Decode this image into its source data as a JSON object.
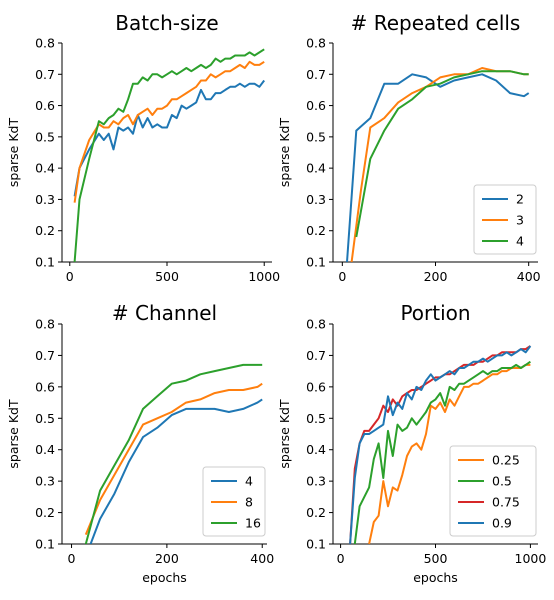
{
  "chart_data": [
    {
      "type": "line",
      "title": "Batch-size",
      "xlabel": "",
      "ylabel": "sparse KdT",
      "xlim": [
        -40,
        1040
      ],
      "ylim": [
        0.1,
        0.8
      ],
      "xticks": [
        0,
        500,
        1000
      ],
      "yticks": [
        0.1,
        0.2,
        0.3,
        0.4,
        0.5,
        0.6,
        0.7,
        0.8
      ],
      "legend": null,
      "series": [
        {
          "color": "#1f77b4",
          "x": [
            25,
            50,
            100,
            150,
            175,
            200,
            225,
            250,
            275,
            300,
            325,
            350,
            375,
            400,
            425,
            450,
            475,
            500,
            525,
            550,
            575,
            600,
            625,
            650,
            675,
            700,
            725,
            750,
            775,
            800,
            825,
            850,
            875,
            900,
            925,
            950,
            975,
            1000
          ],
          "y": [
            0.31,
            0.4,
            0.46,
            0.51,
            0.49,
            0.51,
            0.46,
            0.53,
            0.52,
            0.53,
            0.51,
            0.57,
            0.53,
            0.56,
            0.53,
            0.54,
            0.53,
            0.53,
            0.57,
            0.56,
            0.6,
            0.59,
            0.6,
            0.61,
            0.65,
            0.62,
            0.62,
            0.64,
            0.64,
            0.65,
            0.66,
            0.66,
            0.67,
            0.66,
            0.67,
            0.67,
            0.66,
            0.68
          ]
        },
        {
          "color": "#ff7f0e",
          "x": [
            25,
            50,
            100,
            150,
            175,
            200,
            225,
            250,
            275,
            300,
            325,
            350,
            375,
            400,
            425,
            450,
            475,
            500,
            525,
            550,
            575,
            600,
            625,
            650,
            675,
            700,
            725,
            750,
            775,
            800,
            825,
            850,
            875,
            900,
            925,
            950,
            975,
            1000
          ],
          "y": [
            0.29,
            0.4,
            0.49,
            0.54,
            0.53,
            0.53,
            0.55,
            0.54,
            0.56,
            0.57,
            0.54,
            0.57,
            0.58,
            0.59,
            0.57,
            0.59,
            0.59,
            0.6,
            0.62,
            0.62,
            0.63,
            0.64,
            0.65,
            0.66,
            0.68,
            0.68,
            0.7,
            0.69,
            0.7,
            0.71,
            0.71,
            0.72,
            0.73,
            0.72,
            0.74,
            0.73,
            0.73,
            0.74
          ]
        },
        {
          "color": "#2ca02c",
          "x": [
            25,
            50,
            100,
            150,
            175,
            200,
            225,
            250,
            275,
            300,
            325,
            350,
            375,
            400,
            425,
            450,
            475,
            500,
            525,
            550,
            575,
            600,
            625,
            650,
            675,
            700,
            725,
            750,
            775,
            800,
            825,
            850,
            875,
            900,
            925,
            950,
            975,
            1000
          ],
          "y": [
            0.1,
            0.3,
            0.43,
            0.55,
            0.54,
            0.56,
            0.57,
            0.59,
            0.58,
            0.62,
            0.67,
            0.67,
            0.69,
            0.68,
            0.7,
            0.7,
            0.69,
            0.7,
            0.71,
            0.7,
            0.71,
            0.72,
            0.71,
            0.72,
            0.73,
            0.72,
            0.73,
            0.75,
            0.74,
            0.75,
            0.75,
            0.76,
            0.76,
            0.76,
            0.77,
            0.76,
            0.77,
            0.78
          ]
        }
      ]
    },
    {
      "type": "line",
      "title": "# Repeated cells",
      "xlabel": "",
      "ylabel": "sparse KdT",
      "xlim": [
        -20,
        420
      ],
      "ylim": [
        0.1,
        0.8
      ],
      "xticks": [
        0,
        200,
        400
      ],
      "yticks": [
        0.1,
        0.2,
        0.3,
        0.4,
        0.5,
        0.6,
        0.7,
        0.8
      ],
      "legend": {
        "position": "lower-right",
        "items": [
          "2",
          "3",
          "4"
        ]
      },
      "series": [
        {
          "name": "2",
          "color": "#1f77b4",
          "x": [
            10,
            30,
            60,
            90,
            120,
            150,
            180,
            210,
            240,
            270,
            300,
            330,
            360,
            390,
            400
          ],
          "y": [
            0.1,
            0.52,
            0.56,
            0.67,
            0.67,
            0.7,
            0.69,
            0.66,
            0.68,
            0.69,
            0.7,
            0.68,
            0.64,
            0.63,
            0.64
          ]
        },
        {
          "name": "3",
          "color": "#ff7f0e",
          "x": [
            20,
            40,
            60,
            90,
            120,
            150,
            180,
            210,
            240,
            270,
            300,
            330,
            360,
            390,
            400
          ],
          "y": [
            0.1,
            0.33,
            0.53,
            0.56,
            0.61,
            0.64,
            0.66,
            0.69,
            0.7,
            0.7,
            0.72,
            0.71,
            0.71,
            0.7,
            0.7
          ]
        },
        {
          "name": "4",
          "color": "#2ca02c",
          "x": [
            30,
            60,
            90,
            120,
            150,
            180,
            210,
            240,
            270,
            300,
            330,
            360,
            390,
            400
          ],
          "y": [
            0.18,
            0.43,
            0.52,
            0.59,
            0.62,
            0.66,
            0.67,
            0.69,
            0.7,
            0.71,
            0.71,
            0.71,
            0.7,
            0.7
          ]
        }
      ]
    },
    {
      "type": "line",
      "title": "# Channel",
      "xlabel": "epochs",
      "ylabel": "sparse KdT",
      "xlim": [
        -20,
        410
      ],
      "ylim": [
        0.1,
        0.8
      ],
      "xticks": [
        0,
        200,
        400
      ],
      "yticks": [
        0.1,
        0.2,
        0.3,
        0.4,
        0.5,
        0.6,
        0.7,
        0.8
      ],
      "legend": {
        "position": "lower-right",
        "items": [
          "4",
          "8",
          "16"
        ]
      },
      "series": [
        {
          "name": "4",
          "color": "#1f77b4",
          "x": [
            40,
            60,
            90,
            120,
            150,
            180,
            210,
            240,
            270,
            300,
            330,
            360,
            390,
            400
          ],
          "y": [
            0.1,
            0.18,
            0.26,
            0.36,
            0.44,
            0.47,
            0.51,
            0.53,
            0.53,
            0.53,
            0.52,
            0.53,
            0.55,
            0.56
          ]
        },
        {
          "name": "8",
          "color": "#ff7f0e",
          "x": [
            30,
            60,
            90,
            120,
            150,
            180,
            210,
            240,
            270,
            300,
            330,
            360,
            390,
            400
          ],
          "y": [
            0.13,
            0.24,
            0.32,
            0.4,
            0.48,
            0.5,
            0.52,
            0.55,
            0.56,
            0.58,
            0.59,
            0.59,
            0.6,
            0.61
          ]
        },
        {
          "name": "16",
          "color": "#2ca02c",
          "x": [
            30,
            60,
            90,
            120,
            150,
            180,
            210,
            240,
            270,
            300,
            330,
            360,
            390,
            400
          ],
          "y": [
            0.1,
            0.27,
            0.35,
            0.43,
            0.53,
            0.57,
            0.61,
            0.62,
            0.64,
            0.65,
            0.66,
            0.67,
            0.67,
            0.67
          ]
        }
      ]
    },
    {
      "type": "line",
      "title": "Portion",
      "xlabel": "epochs",
      "ylabel": "sparse KdT",
      "xlim": [
        -40,
        1040
      ],
      "ylim": [
        0.1,
        0.8
      ],
      "xticks": [
        0,
        500,
        1000
      ],
      "yticks": [
        0.1,
        0.2,
        0.3,
        0.4,
        0.5,
        0.6,
        0.7,
        0.8
      ],
      "legend": {
        "position": "lower-right",
        "items": [
          "0.25",
          "0.5",
          "0.75",
          "0.9"
        ]
      },
      "series": [
        {
          "name": "0.25",
          "color": "#ff7f0e",
          "x": [
            150,
            175,
            200,
            225,
            250,
            275,
            300,
            325,
            350,
            375,
            400,
            425,
            450,
            475,
            500,
            525,
            550,
            575,
            600,
            625,
            650,
            675,
            700,
            725,
            750,
            775,
            800,
            825,
            850,
            875,
            900,
            925,
            950,
            975,
            1000
          ],
          "y": [
            0.1,
            0.17,
            0.19,
            0.3,
            0.22,
            0.28,
            0.27,
            0.32,
            0.38,
            0.41,
            0.42,
            0.4,
            0.45,
            0.54,
            0.53,
            0.55,
            0.52,
            0.56,
            0.54,
            0.57,
            0.6,
            0.6,
            0.61,
            0.61,
            0.62,
            0.63,
            0.64,
            0.64,
            0.65,
            0.65,
            0.66,
            0.66,
            0.66,
            0.67,
            0.67
          ]
        },
        {
          "name": "0.5",
          "color": "#2ca02c",
          "x": [
            75,
            100,
            125,
            150,
            175,
            200,
            225,
            250,
            275,
            300,
            325,
            350,
            375,
            400,
            425,
            450,
            475,
            500,
            525,
            550,
            575,
            600,
            625,
            650,
            675,
            700,
            725,
            750,
            775,
            800,
            825,
            850,
            875,
            900,
            925,
            950,
            975,
            1000
          ],
          "y": [
            0.1,
            0.22,
            0.25,
            0.28,
            0.37,
            0.42,
            0.31,
            0.46,
            0.38,
            0.48,
            0.46,
            0.47,
            0.5,
            0.48,
            0.5,
            0.52,
            0.55,
            0.56,
            0.58,
            0.54,
            0.6,
            0.59,
            0.61,
            0.61,
            0.62,
            0.63,
            0.64,
            0.65,
            0.64,
            0.65,
            0.65,
            0.66,
            0.66,
            0.66,
            0.67,
            0.66,
            0.67,
            0.68
          ]
        },
        {
          "name": "0.75",
          "color": "#d62728",
          "x": [
            50,
            75,
            100,
            125,
            150,
            175,
            200,
            225,
            250,
            275,
            300,
            325,
            350,
            375,
            400,
            425,
            450,
            475,
            500,
            525,
            550,
            575,
            600,
            625,
            650,
            675,
            700,
            725,
            750,
            775,
            800,
            825,
            850,
            875,
            900,
            925,
            950,
            975,
            1000
          ],
          "y": [
            0.1,
            0.34,
            0.42,
            0.46,
            0.46,
            0.48,
            0.5,
            0.54,
            0.52,
            0.56,
            0.54,
            0.57,
            0.58,
            0.59,
            0.59,
            0.6,
            0.61,
            0.62,
            0.63,
            0.63,
            0.64,
            0.64,
            0.65,
            0.66,
            0.67,
            0.67,
            0.67,
            0.68,
            0.68,
            0.69,
            0.7,
            0.7,
            0.71,
            0.71,
            0.71,
            0.71,
            0.72,
            0.72,
            0.73
          ]
        },
        {
          "name": "0.9",
          "color": "#1f77b4",
          "x": [
            50,
            75,
            100,
            125,
            150,
            175,
            200,
            225,
            250,
            275,
            300,
            325,
            350,
            375,
            400,
            425,
            450,
            475,
            500,
            525,
            550,
            575,
            600,
            625,
            650,
            675,
            700,
            725,
            750,
            775,
            800,
            825,
            850,
            875,
            900,
            925,
            950,
            975,
            1000
          ],
          "y": [
            0.1,
            0.31,
            0.42,
            0.45,
            0.45,
            0.46,
            0.47,
            0.48,
            0.57,
            0.51,
            0.55,
            0.53,
            0.58,
            0.56,
            0.6,
            0.59,
            0.62,
            0.64,
            0.62,
            0.63,
            0.64,
            0.65,
            0.64,
            0.66,
            0.66,
            0.67,
            0.68,
            0.68,
            0.69,
            0.68,
            0.69,
            0.7,
            0.7,
            0.71,
            0.7,
            0.71,
            0.72,
            0.71,
            0.73
          ]
        }
      ]
    }
  ]
}
